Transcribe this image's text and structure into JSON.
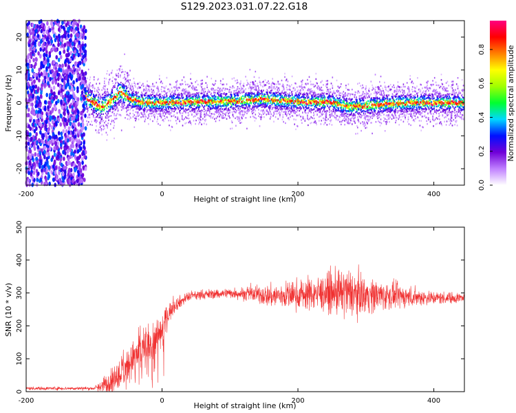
{
  "title": "S129.2023.031.07.22.G18",
  "chart_data": [
    {
      "type": "heatmap",
      "xlabel": "Height of straight line (km)",
      "ylabel": "Frequency (Hz)",
      "xlim": [
        -200,
        445
      ],
      "ylim": [
        -25,
        25
      ],
      "xticks": [
        -200,
        0,
        200,
        400
      ],
      "yticks": [
        -20,
        -10,
        0,
        10,
        20
      ],
      "colorbar": {
        "label": "Normalized spectral amplitude",
        "range": [
          0,
          0.97
        ],
        "ticks": [
          0.0,
          0.2,
          0.4,
          0.6,
          0.8
        ],
        "colors": [
          "#ffffff",
          "#c080ff",
          "#7000d8",
          "#0010ff",
          "#00d8ff",
          "#00ff30",
          "#a0ff00",
          "#ffff00",
          "#ff8000",
          "#ff0000",
          "#ff0080"
        ]
      },
      "noise_region_x": [
        -200,
        -112
      ],
      "ridge": {
        "x": [
          -112,
          -100,
          -90,
          -80,
          -70,
          -62,
          -55,
          -45,
          -30,
          0,
          50,
          100,
          150,
          200,
          250,
          275,
          300,
          350,
          400,
          445
        ],
        "y": [
          1.5,
          0,
          -1.5,
          0,
          1.5,
          3.5,
          2.5,
          1,
          0.3,
          0,
          0.3,
          0.5,
          1.2,
          0.3,
          0.2,
          -1.2,
          -0.8,
          0,
          0,
          0
        ]
      }
    },
    {
      "type": "line",
      "xlabel": "Height of straight line (km)",
      "ylabel": "SNR (10 * v/v)",
      "xlim": [
        -200,
        445
      ],
      "ylim": [
        0,
        500
      ],
      "xticks": [
        -200,
        0,
        200,
        400
      ],
      "yticks": [
        0,
        100,
        200,
        300,
        400,
        500
      ],
      "color": "#f03030",
      "series": [
        {
          "x": [
            -200,
            -100,
            -80,
            -60,
            -40,
            -20,
            0,
            10,
            20,
            40,
            60,
            100,
            140,
            160,
            200,
            240,
            270,
            300,
            350,
            400,
            445
          ],
          "y": [
            10,
            10,
            25,
            70,
            110,
            140,
            190,
            240,
            265,
            290,
            295,
            300,
            295,
            290,
            295,
            300,
            300,
            295,
            290,
            285,
            285
          ],
          "spread": [
            5,
            5,
            30,
            50,
            60,
            70,
            60,
            30,
            20,
            15,
            15,
            15,
            25,
            35,
            45,
            55,
            75,
            55,
            35,
            20,
            15
          ]
        }
      ]
    }
  ]
}
